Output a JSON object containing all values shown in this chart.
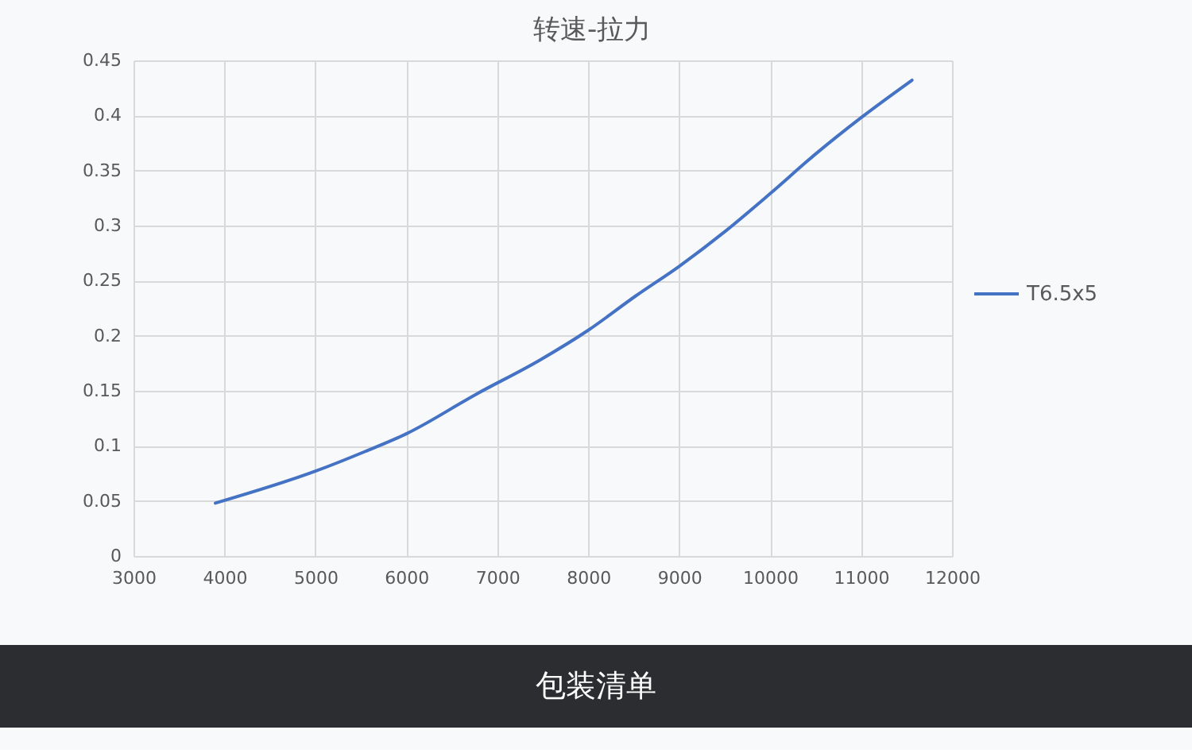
{
  "chart_data": {
    "type": "line",
    "title": "转速-拉力",
    "x": [
      3900,
      5000,
      5550,
      6000,
      6770,
      7470,
      8000,
      8520,
      9000,
      9510,
      10000,
      10500,
      11000,
      11560
    ],
    "series": [
      {
        "name": "T6.5x5",
        "color": "#4472c4",
        "values": [
          0.048,
          0.077,
          0.095,
          0.111,
          0.147,
          0.178,
          0.205,
          0.236,
          0.263,
          0.295,
          0.329,
          0.365,
          0.398,
          0.432
        ]
      }
    ],
    "xlim": [
      3000,
      12000
    ],
    "xticks": [
      3000,
      4000,
      5000,
      6000,
      7000,
      8000,
      9000,
      10000,
      11000,
      12000
    ],
    "ylim": [
      0,
      0.45
    ],
    "yticks": [
      0,
      0.05,
      0.1,
      0.15,
      0.2,
      0.25,
      0.3,
      0.35,
      0.4,
      0.45
    ],
    "grid": true,
    "legend": "right",
    "annotations": [
      "包装清单"
    ]
  }
}
